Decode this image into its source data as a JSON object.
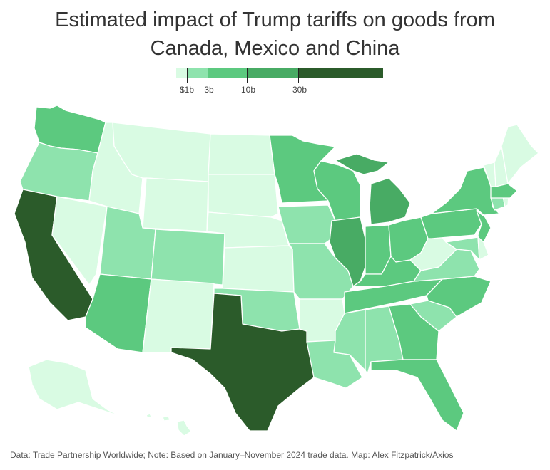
{
  "title": {
    "line1": "Estimated impact of Trump tariffs on goods from",
    "line2": "Canada, Mexico and China"
  },
  "legend": {
    "bins": [
      {
        "color": "#d9fbe3"
      },
      {
        "color": "#8ee3ad",
        "label": "$1b"
      },
      {
        "color": "#5cc97f",
        "label": "3b"
      },
      {
        "color": "#48ab64",
        "label": "10b"
      },
      {
        "color": "#2b5b2a",
        "label": "30b"
      }
    ]
  },
  "colors": {
    "t0": "#d9fbe3",
    "t1": "#8ee3ad",
    "t2": "#5cc97f",
    "t3": "#48ab64",
    "t4": "#2b5b2a",
    "border": "#ffffff"
  },
  "footer": {
    "prefix": "Data: ",
    "source": "Trade Partnership Worldwide",
    "rest": "; Note: Based on January–November 2024 trade data. Map: Alex Fitzpatrick/Axios"
  },
  "states": {
    "WA": "t2",
    "OR": "t1",
    "CA": "t4",
    "NV": "t0",
    "ID": "t0",
    "MT": "t0",
    "WY": "t0",
    "UT": "t1",
    "AZ": "t2",
    "CO": "t1",
    "NM": "t0",
    "ND": "t0",
    "SD": "t0",
    "NE": "t0",
    "KS": "t0",
    "OK": "t1",
    "TX": "t4",
    "MN": "t2",
    "IA": "t1",
    "MO": "t1",
    "AR": "t0",
    "LA": "t1",
    "WI": "t2",
    "IL": "t3",
    "MI": "t3",
    "IN": "t2",
    "OH": "t2",
    "KY": "t2",
    "TN": "t2",
    "MS": "t1",
    "AL": "t1",
    "GA": "t2",
    "FL": "t2",
    "SC": "t1",
    "NC": "t2",
    "VA": "t1",
    "WV": "t0",
    "PA": "t2",
    "NY": "t2",
    "NJ": "t2",
    "DE": "t0",
    "MD": "t1",
    "CT": "t1",
    "RI": "t0",
    "MA": "t2",
    "VT": "t0",
    "NH": "t0",
    "ME": "t0",
    "AK": "t0",
    "HI": "t0"
  }
}
